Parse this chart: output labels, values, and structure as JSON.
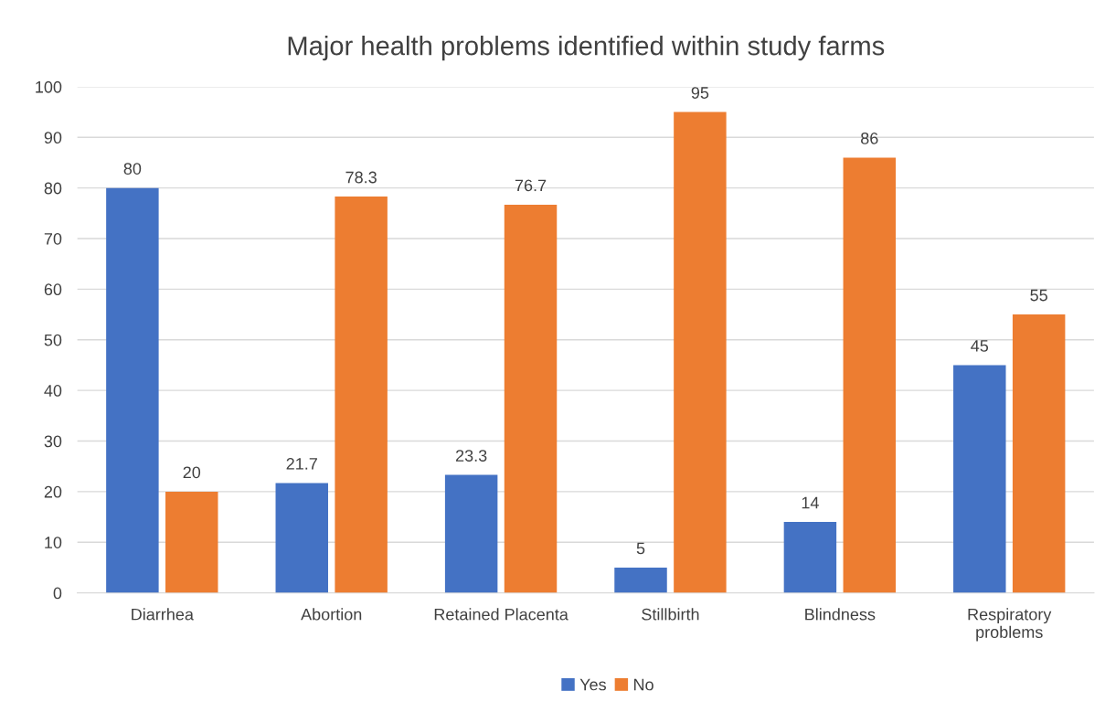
{
  "chart_data": {
    "type": "bar",
    "title": "Major health problems identified within study farms",
    "categories": [
      "Diarrhea",
      "Abortion",
      "Retained Placenta",
      "Stillbirth",
      "Blindness",
      "Respiratory\nproblems"
    ],
    "series": [
      {
        "name": "Yes",
        "color": "#4472c4",
        "values": [
          80,
          21.7,
          23.3,
          5,
          14,
          45
        ]
      },
      {
        "name": "No",
        "color": "#ed7d31",
        "values": [
          20,
          78.3,
          76.7,
          95,
          86,
          55
        ]
      }
    ],
    "ylim": [
      0,
      100
    ],
    "yticks": [
      0,
      10,
      20,
      30,
      40,
      50,
      60,
      70,
      80,
      90,
      100
    ],
    "grid": "y",
    "legend": "bottom",
    "data_labels": true
  }
}
